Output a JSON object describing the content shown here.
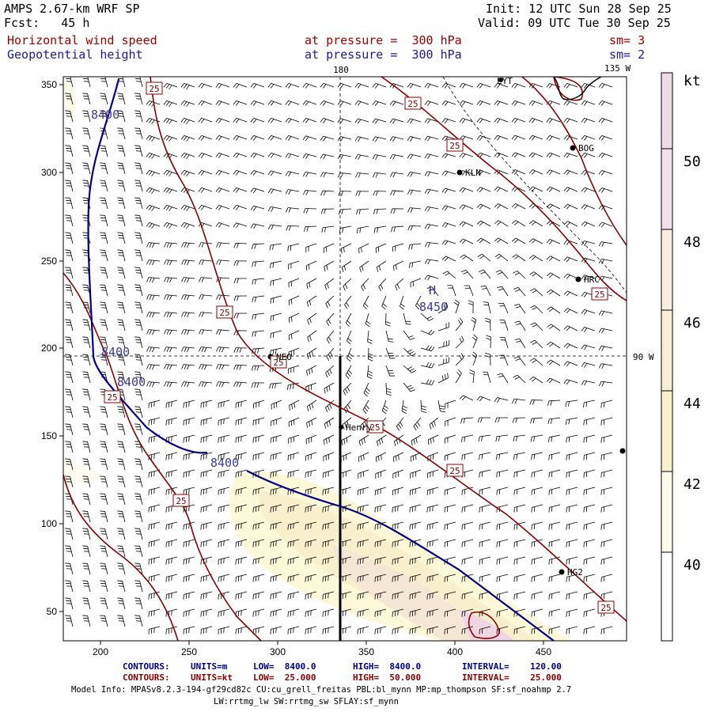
{
  "header": {
    "model": "AMPS 2.67-km WRF SP",
    "fcst": "Fcst:   45 h",
    "init": "Init: 12 UTC Sun 28 Sep 25",
    "valid": "Valid: 09 UTC Tue 30 Sep 25",
    "field1": "Horizontal wind speed",
    "field1_level": "at pressure =  300 hPa",
    "field1_sm": "sm= 3",
    "field2": "Geopotential height",
    "field2_level": "at pressure =  300 hPa",
    "field2_sm": "sm= 2"
  },
  "map": {
    "lon_label_top_180": "180",
    "lon_label_top_135w": "135 W",
    "lon_label_right_90w": "90 W",
    "x_ticks": [
      "200",
      "250",
      "300",
      "350",
      "400",
      "450"
    ],
    "y_ticks": [
      "350",
      "300",
      "250",
      "200",
      "150",
      "100",
      "50"
    ],
    "height_labels": [
      "8400",
      "8400",
      "8400",
      "8400"
    ],
    "high_marker": "H",
    "high_value": "8450",
    "speed_labels": [
      "25",
      "25",
      "25",
      "25",
      "25",
      "25",
      "25",
      "25",
      "25",
      "25",
      "25"
    ],
    "stations": [
      {
        "name": "LYT"
      },
      {
        "name": "BOG"
      },
      {
        "name": "KLN"
      },
      {
        "name": "HRC"
      },
      {
        "name": "NEO"
      },
      {
        "name": "Henry"
      },
      {
        "name": "HG2"
      }
    ]
  },
  "colorbar": {
    "unit": "kt",
    "labels": [
      "50",
      "48",
      "46",
      "44",
      "42",
      "40"
    ],
    "colors": [
      "#eedbe8",
      "#f2e0ea",
      "#f7eee0",
      "#f7eed6",
      "#f8f2c9",
      "#fdfce8"
    ]
  },
  "footer": {
    "c1_title": "CONTOURS:",
    "c1_units": "UNITS=m",
    "c1_low": "LOW=  8400.0",
    "c1_high": "HIGH=  8400.0",
    "c1_interval": "INTERVAL=    120.00",
    "c2_title": "CONTOURS:",
    "c2_units": "UNITS=kt",
    "c2_low": "LOW=  25.000",
    "c2_high": "HIGH=  50.000",
    "c2_interval": "INTERVAL=    25.000",
    "model_info": "Model Info: MPASv8.2.3-194-gf29cd82c CU:cu_grell_freitas PBL:bl_mynn MP:mp_thompson SF:sf_noahmp 2.7",
    "model_info2": "LW:rrtmg_lw SW:rrtmg_sw SFLAY:sf_mynn"
  }
}
